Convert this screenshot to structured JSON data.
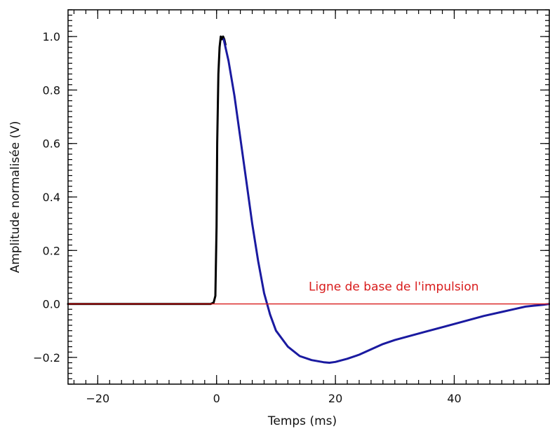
{
  "chart_data": {
    "type": "line",
    "xlabel": "Temps (ms)",
    "ylabel": "Amplitude normalisée (V)",
    "xlim": [
      -25,
      56
    ],
    "ylim": [
      -0.3,
      1.1
    ],
    "x_ticks": [
      -20,
      0,
      20,
      40
    ],
    "x_tick_labels": [
      "−20",
      "0",
      "20",
      "40"
    ],
    "y_ticks": [
      -0.2,
      0.0,
      0.2,
      0.4,
      0.6,
      0.8,
      1.0
    ],
    "y_tick_labels": [
      "−0.2",
      "0.0",
      "0.2",
      "0.4",
      "0.6",
      "0.8",
      "1.0"
    ],
    "grid": false,
    "series": [
      {
        "color": "#000000",
        "x": [
          -25,
          -1,
          -0.5,
          -0.2,
          0,
          0.1,
          0.3,
          0.5,
          0.7,
          0.9,
          1.1,
          1.3,
          1.5
        ],
        "y": [
          0,
          0,
          0.005,
          0.03,
          0.29,
          0.6,
          0.86,
          0.96,
          1.0,
          0.99,
          1.0,
          0.99,
          0.97
        ]
      },
      {
        "color": "#1a1aa0",
        "x": [
          1.2,
          1.5,
          2,
          3,
          4,
          5,
          6,
          7,
          8,
          9,
          10,
          12,
          14,
          16,
          18,
          19,
          20,
          22,
          24,
          26,
          28,
          30,
          35,
          40,
          45,
          48,
          50,
          52,
          55,
          56
        ],
        "y": [
          0.99,
          0.96,
          0.91,
          0.78,
          0.62,
          0.46,
          0.3,
          0.16,
          0.04,
          -0.04,
          -0.1,
          -0.16,
          -0.195,
          -0.21,
          -0.218,
          -0.22,
          -0.217,
          -0.205,
          -0.19,
          -0.17,
          -0.15,
          -0.135,
          -0.105,
          -0.075,
          -0.045,
          -0.03,
          -0.02,
          -0.01,
          -0.003,
          0
        ]
      }
    ],
    "baseline": {
      "y": 0.0,
      "color": "#d81b1b"
    },
    "annotations": [
      {
        "text": "Ligne de base de l'impulsion",
        "x": 15.5,
        "y": 0.05,
        "color": "#d81b1b"
      }
    ]
  }
}
